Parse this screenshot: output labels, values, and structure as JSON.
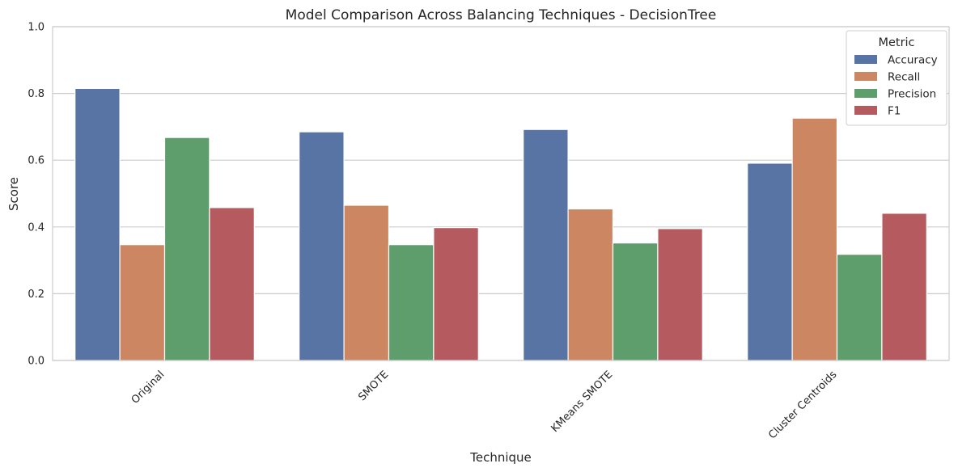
{
  "chart_data": {
    "type": "bar",
    "title": "Model Comparison Across Balancing Techniques - DecisionTree",
    "xlabel": "Technique",
    "ylabel": "Score",
    "ylim": [
      0,
      1.0
    ],
    "yticks": [
      "0.0",
      "0.2",
      "0.4",
      "0.6",
      "0.8",
      "1.0"
    ],
    "grid": true,
    "categories": [
      "Original",
      "SMOTE",
      "KMeans SMOTE",
      "Cluster Centroids"
    ],
    "legend": {
      "title": "Metric",
      "position": "top-right"
    },
    "series": [
      {
        "name": "Accuracy",
        "color": "#5874a5",
        "values": [
          0.815,
          0.685,
          0.692,
          0.591
        ]
      },
      {
        "name": "Recall",
        "color": "#cc8762",
        "values": [
          0.347,
          0.465,
          0.454,
          0.726
        ]
      },
      {
        "name": "Precision",
        "color": "#5d9e6c",
        "values": [
          0.668,
          0.347,
          0.352,
          0.318
        ]
      },
      {
        "name": "F1",
        "color": "#b55b5f",
        "values": [
          0.458,
          0.398,
          0.395,
          0.441
        ]
      }
    ]
  }
}
